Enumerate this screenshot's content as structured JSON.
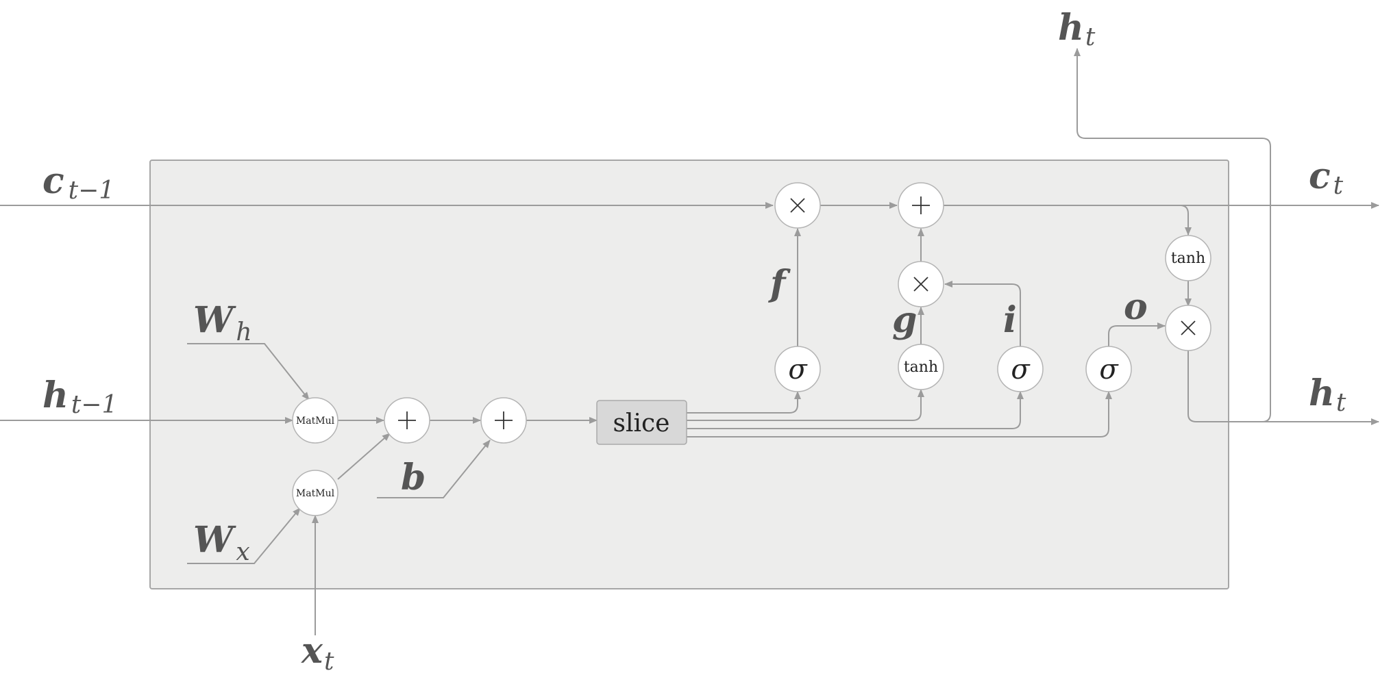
{
  "colors": {
    "background": "#ffffff",
    "panel": "#ededec",
    "wire": "#9b9b9b",
    "node_fill": "#ffffff",
    "slice_fill": "#d8d8d8",
    "label": "#555555",
    "operator": "#222222"
  },
  "ops": {
    "matmul_h": "MatMul",
    "matmul_x": "MatMul",
    "slice": "slice",
    "sigma_f": "σ",
    "tanh_g": "tanh",
    "sigma_i": "σ",
    "sigma_o": "σ",
    "tanh_c": "tanh"
  },
  "labels": {
    "c_prev": {
      "main": "c",
      "sub": "t−1"
    },
    "h_prev": {
      "main": "h",
      "sub": "t−1"
    },
    "x_t": {
      "main": "x",
      "sub": "t"
    },
    "w_h": {
      "main": "W",
      "sub": "h"
    },
    "w_x": {
      "main": "W",
      "sub": "x"
    },
    "b": "b",
    "f": "f",
    "g": "g",
    "i": "i",
    "o": "o",
    "c_t": {
      "main": "c",
      "sub": "t"
    },
    "h_t_right": {
      "main": "h",
      "sub": "t"
    },
    "h_t_top": {
      "main": "h",
      "sub": "t"
    }
  }
}
